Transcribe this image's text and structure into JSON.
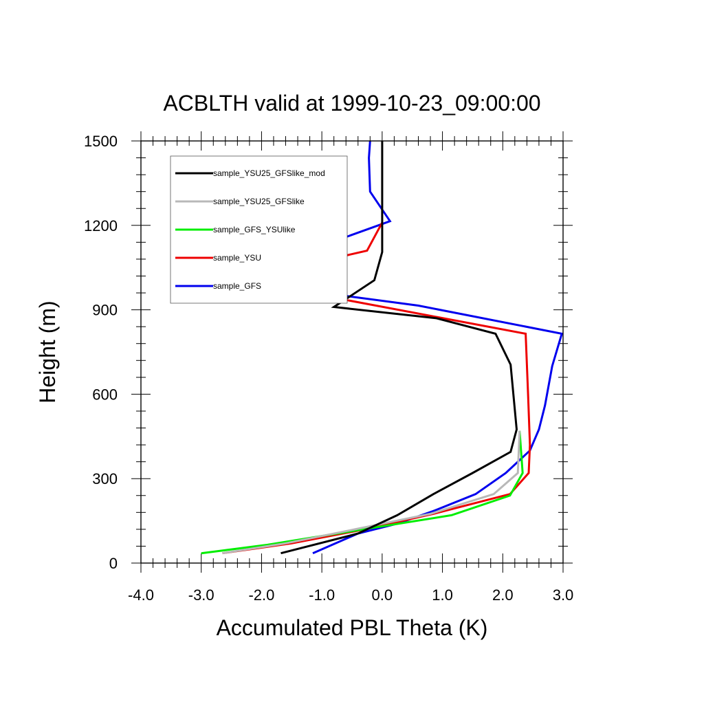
{
  "chart_data": {
    "type": "line",
    "title": "ACBLTH valid at 1999-10-23_09:00:00",
    "xlabel": "Accumulated PBL Theta (K)",
    "ylabel": "Height (m)",
    "xlim": [
      -4.0,
      3.0
    ],
    "ylim": [
      0,
      1500
    ],
    "x_ticks": [
      -4.0,
      -3.0,
      -2.0,
      -1.0,
      0.0,
      1.0,
      2.0,
      3.0
    ],
    "x_tick_labels": [
      "-4.0",
      "-3.0",
      "-2.0",
      "-1.0",
      "0.0",
      "1.0",
      "2.0",
      "3.0"
    ],
    "y_ticks": [
      0,
      300,
      600,
      900,
      1200,
      1500
    ],
    "y_tick_labels": [
      "0",
      "300",
      "600",
      "900",
      "1200",
      "1500"
    ],
    "grid": false,
    "legend_position": "top-left",
    "series": [
      {
        "name": "sample_YSU25_GFSlike_mod",
        "color": "#000000",
        "points": [
          [
            -1.68,
            35
          ],
          [
            -0.4,
            105
          ],
          [
            0.25,
            170
          ],
          [
            0.85,
            245
          ],
          [
            1.5,
            320
          ],
          [
            2.13,
            395
          ],
          [
            2.23,
            475
          ],
          [
            2.13,
            705
          ],
          [
            1.88,
            815
          ],
          [
            0.9,
            870
          ],
          [
            -0.8,
            910
          ],
          [
            -0.13,
            1005
          ],
          [
            0.0,
            1105
          ],
          [
            0.0,
            1500
          ]
        ]
      },
      {
        "name": "sample_YSU25_GFSlike",
        "color": "#b8b8b8",
        "points": [
          [
            -2.65,
            35
          ],
          [
            -1.6,
            70
          ],
          [
            -0.45,
            120
          ],
          [
            0.8,
            175
          ],
          [
            1.85,
            245
          ],
          [
            2.25,
            320
          ],
          [
            2.28,
            470
          ]
        ]
      },
      {
        "name": "sample_GFS_YSUlike",
        "color": "#00ee00",
        "points": [
          [
            -3.0,
            35
          ],
          [
            -1.9,
            65
          ],
          [
            -0.6,
            110
          ],
          [
            1.15,
            170
          ],
          [
            2.12,
            240
          ],
          [
            2.33,
            320
          ],
          [
            2.28,
            470
          ]
        ]
      },
      {
        "name": "sample_YSU",
        "color": "#ee0000",
        "points": [
          [
            -2.65,
            35
          ],
          [
            -1.5,
            70
          ],
          [
            -0.4,
            115
          ],
          [
            0.85,
            175
          ],
          [
            2.12,
            245
          ],
          [
            2.43,
            320
          ],
          [
            2.45,
            420
          ],
          [
            2.42,
            600
          ],
          [
            2.38,
            815
          ],
          [
            -0.6,
            935
          ],
          [
            -2.3,
            1010
          ],
          [
            -0.25,
            1110
          ],
          [
            0.0,
            1210
          ]
        ]
      },
      {
        "name": "sample_GFS",
        "color": "#0000ee",
        "points": [
          [
            -1.15,
            35
          ],
          [
            -0.4,
            105
          ],
          [
            0.25,
            140
          ],
          [
            0.85,
            185
          ],
          [
            1.55,
            245
          ],
          [
            2.05,
            320
          ],
          [
            2.45,
            400
          ],
          [
            2.6,
            475
          ],
          [
            2.7,
            560
          ],
          [
            2.82,
            700
          ],
          [
            2.98,
            815
          ],
          [
            0.6,
            915
          ],
          [
            -0.8,
            955
          ],
          [
            -2.7,
            1010
          ],
          [
            -1.1,
            1120
          ],
          [
            0.13,
            1215
          ],
          [
            -0.2,
            1320
          ],
          [
            -0.22,
            1440
          ],
          [
            -0.2,
            1500
          ]
        ]
      }
    ]
  }
}
